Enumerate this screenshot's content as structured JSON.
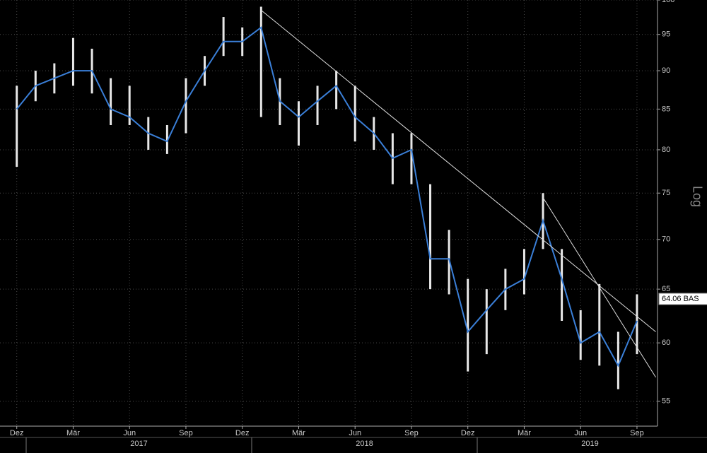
{
  "chart_data": {
    "type": "range_line",
    "log_scale": true,
    "grid": true,
    "axis_label": "Log",
    "line_color": "#3a7fd8",
    "range_color": "#e8e8e8",
    "x": [
      "2016-12",
      "2017-01",
      "2017-02",
      "2017-03",
      "2017-04",
      "2017-05",
      "2017-06",
      "2017-07",
      "2017-08",
      "2017-09",
      "2017-10",
      "2017-11",
      "2017-12",
      "2018-01",
      "2018-02",
      "2018-03",
      "2018-04",
      "2018-05",
      "2018-06",
      "2018-07",
      "2018-08",
      "2018-09",
      "2018-10",
      "2018-11",
      "2018-12",
      "2019-01",
      "2019-02",
      "2019-03",
      "2019-04",
      "2019-05",
      "2019-06",
      "2019-07",
      "2019-08",
      "2019-09"
    ],
    "values": [
      85,
      88,
      89,
      90,
      90,
      85,
      84,
      82,
      81,
      86,
      90,
      94,
      94,
      96,
      86,
      84,
      86,
      88,
      84,
      82,
      79,
      80,
      68,
      68,
      61,
      63,
      65,
      66,
      72,
      66,
      60,
      61,
      58,
      62
    ],
    "high": [
      88,
      90,
      91,
      94.5,
      93,
      89,
      88,
      84,
      83,
      89,
      92,
      97.5,
      96,
      99,
      89,
      86,
      88,
      90,
      88,
      84,
      82,
      82,
      76,
      71,
      66,
      65,
      67,
      69,
      75,
      69,
      63,
      65.5,
      61,
      64.5
    ],
    "low": [
      78,
      86,
      87,
      88,
      87,
      83,
      83,
      80,
      79.5,
      82,
      88,
      92,
      92,
      84,
      83,
      80.5,
      83,
      85,
      81,
      80,
      76,
      76,
      65,
      64.5,
      57.5,
      59,
      63,
      64.5,
      69,
      62,
      58.5,
      58,
      56,
      59
    ],
    "ylim": [
      53,
      100
    ],
    "yticks": [
      55,
      60,
      65,
      70,
      75,
      80,
      85,
      90,
      95,
      100
    ],
    "xticks": [
      {
        "value": "2016-12",
        "label": "Dez"
      },
      {
        "value": "2017-03",
        "label": "Mär"
      },
      {
        "value": "2017-06",
        "label": "Jun"
      },
      {
        "value": "2017-09",
        "label": "Sep"
      },
      {
        "value": "2017-12",
        "label": "Dez"
      },
      {
        "value": "2018-03",
        "label": "Mär"
      },
      {
        "value": "2018-06",
        "label": "Jun"
      },
      {
        "value": "2018-09",
        "label": "Sep"
      },
      {
        "value": "2018-12",
        "label": "Dez"
      },
      {
        "value": "2019-03",
        "label": "Mär"
      },
      {
        "value": "2019-06",
        "label": "Jun"
      },
      {
        "value": "2019-09",
        "label": "Sep"
      }
    ],
    "years": [
      "2017",
      "2018",
      "2019"
    ],
    "trendlines": [
      {
        "x": [
          "2018-01",
          "2019-10"
        ],
        "values": [
          98.5,
          61
        ]
      },
      {
        "x": [
          "2019-04",
          "2019-10"
        ],
        "values": [
          74.5,
          57
        ]
      }
    ],
    "last_price": {
      "value": 64.06,
      "label": "64.06 BAS"
    }
  }
}
